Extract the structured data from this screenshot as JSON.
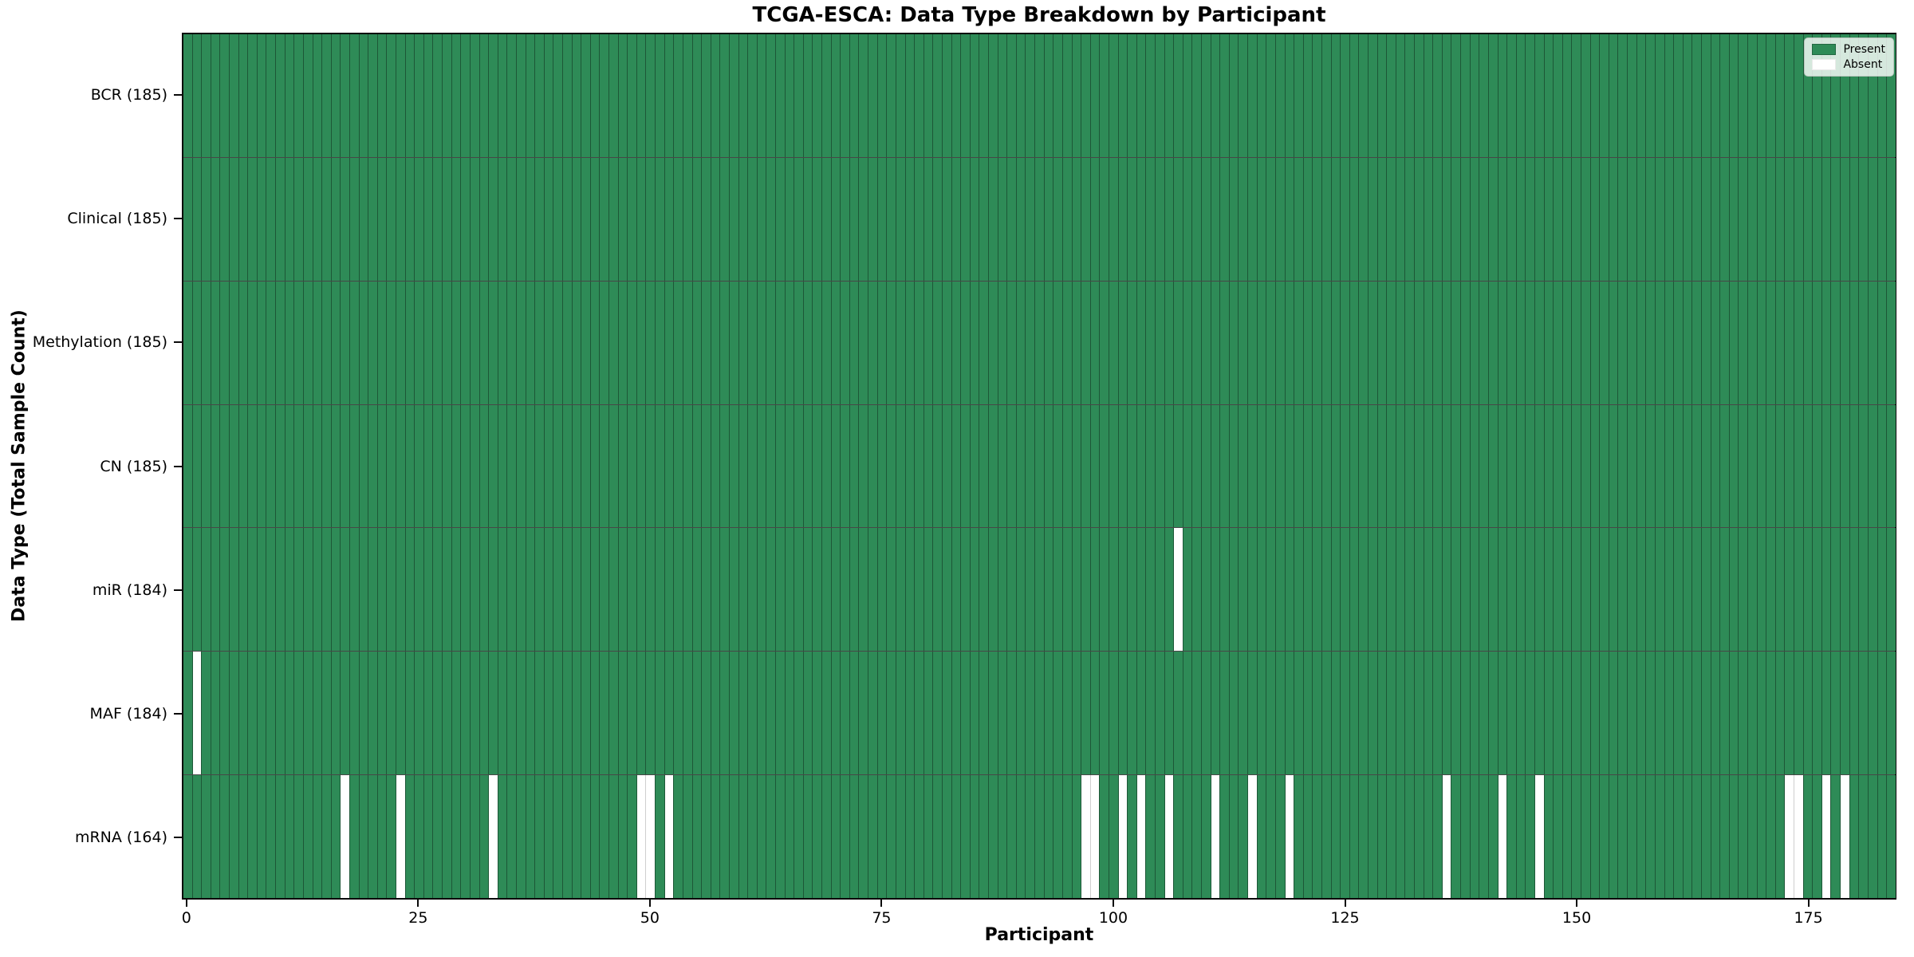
{
  "chart_data": {
    "type": "heatmap",
    "title": "TCGA-ESCA: Data Type Breakdown by Participant",
    "xlabel": "Participant",
    "ylabel": "Data Type (Total Sample Count)",
    "n_participants": 185,
    "x_axis_range": [
      -0.5,
      184.5
    ],
    "x_ticks": [
      0,
      25,
      50,
      75,
      100,
      125,
      150,
      175
    ],
    "x_tick_labels": [
      "0",
      "25",
      "50",
      "75",
      "100",
      "125",
      "150",
      "175"
    ],
    "rows": [
      {
        "name": "BCR",
        "label": "BCR (185)",
        "present_count": 185,
        "absent_participants": []
      },
      {
        "name": "Clinical",
        "label": "Clinical (185)",
        "present_count": 185,
        "absent_participants": []
      },
      {
        "name": "Methylation",
        "label": "Methylation (185)",
        "present_count": 185,
        "absent_participants": []
      },
      {
        "name": "CN",
        "label": "CN (185)",
        "present_count": 185,
        "absent_participants": []
      },
      {
        "name": "miR",
        "label": "miR (184)",
        "present_count": 184,
        "absent_participants": [
          107
        ]
      },
      {
        "name": "MAF",
        "label": "MAF (184)",
        "present_count": 184,
        "absent_participants": [
          1
        ]
      },
      {
        "name": "mRNA",
        "label": "mRNA (164)",
        "present_count": 164,
        "absent_participants": [
          17,
          23,
          33,
          49,
          50,
          52,
          97,
          98,
          101,
          103,
          106,
          111,
          115,
          119,
          136,
          142,
          146,
          173,
          174,
          177,
          179
        ]
      }
    ],
    "legend": [
      {
        "label": "Present",
        "color": "#2e8b57"
      },
      {
        "label": "Absent",
        "color": "#ffffff"
      }
    ],
    "legend_position": "upper right",
    "grid": false,
    "colors": {
      "present": "#2e8b57",
      "absent": "#ffffff",
      "edge_dark": "#1d5737",
      "edge_light": "#cfcfcf",
      "spine": "#0a0a0a",
      "legend_border": "#bcc6bf"
    }
  }
}
